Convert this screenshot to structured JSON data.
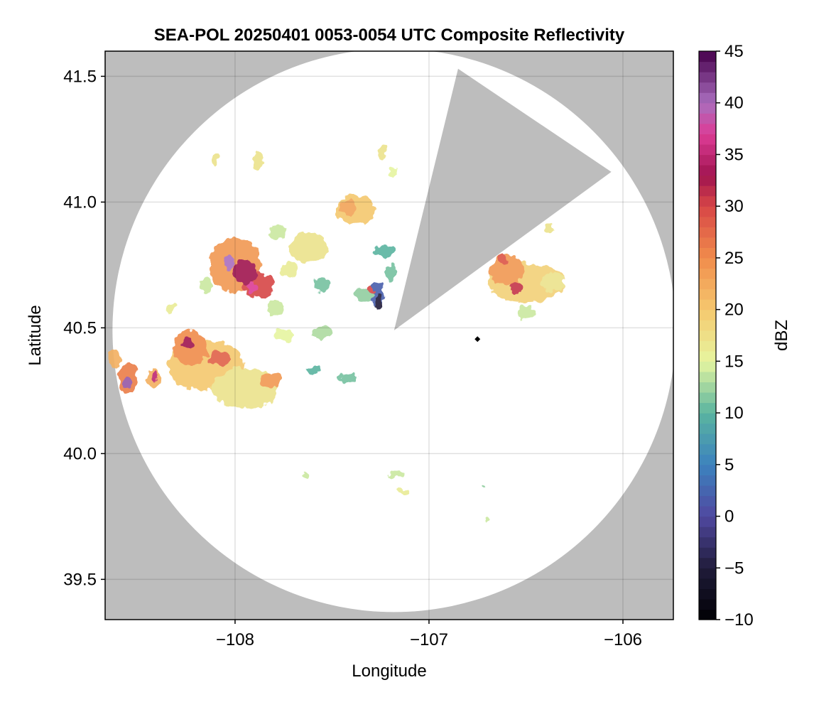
{
  "chart_data": {
    "type": "heatmap",
    "title": "SEA-POL 20250401 0053-0054 UTC Composite Reflectivity",
    "xlabel": "Longitude",
    "ylabel": "Latitude",
    "xlim": [
      -108.67,
      -105.74
    ],
    "ylim": [
      39.34,
      41.6
    ],
    "xticks": [
      -108,
      -107,
      -106
    ],
    "xtick_labels": [
      "−108",
      "−107",
      "−106"
    ],
    "yticks": [
      39.5,
      40.0,
      40.5,
      41.0,
      41.5
    ],
    "ytick_labels": [
      "39.5",
      "40.0",
      "40.5",
      "41.0",
      "41.5"
    ],
    "grid": true,
    "background_color": "#bdbdbd",
    "radar": {
      "center": [
        -107.18,
        40.49
      ],
      "range_radius_deg_lat": 1.12,
      "blocked_sector_vertices": [
        [
          -107.18,
          40.49
        ],
        [
          -106.85,
          41.53
        ],
        [
          -106.06,
          41.12
        ]
      ],
      "site_marker": [
        -106.75,
        40.455
      ]
    },
    "colorbar": {
      "label": "dBZ",
      "min": -10,
      "max": 45,
      "ticks": [
        -10,
        -5,
        0,
        5,
        10,
        15,
        20,
        25,
        30,
        35,
        40,
        45
      ],
      "tick_labels": [
        "−10",
        "−5",
        "0",
        "5",
        "10",
        "15",
        "20",
        "25",
        "30",
        "35",
        "40",
        "45"
      ],
      "step": 1
    },
    "echo_cells": [
      {
        "lon": -108.0,
        "lat": 40.75,
        "rx": 0.13,
        "ry": 0.11,
        "dbz": 24
      },
      {
        "lon": -107.88,
        "lat": 40.67,
        "rx": 0.08,
        "ry": 0.05,
        "dbz": 30
      },
      {
        "lon": -107.95,
        "lat": 40.72,
        "rx": 0.06,
        "ry": 0.05,
        "dbz": 33
      },
      {
        "lon": -108.03,
        "lat": 40.76,
        "rx": 0.03,
        "ry": 0.03,
        "dbz": 40
      },
      {
        "lon": -107.91,
        "lat": 40.66,
        "rx": 0.03,
        "ry": 0.02,
        "dbz": 37
      },
      {
        "lon": -107.62,
        "lat": 40.82,
        "rx": 0.1,
        "ry": 0.06,
        "dbz": 17
      },
      {
        "lon": -107.38,
        "lat": 40.97,
        "rx": 0.1,
        "ry": 0.06,
        "dbz": 20
      },
      {
        "lon": -107.42,
        "lat": 40.98,
        "rx": 0.04,
        "ry": 0.03,
        "dbz": 23
      },
      {
        "lon": -107.78,
        "lat": 40.88,
        "rx": 0.05,
        "ry": 0.03,
        "dbz": 14
      },
      {
        "lon": -107.72,
        "lat": 40.73,
        "rx": 0.04,
        "ry": 0.03,
        "dbz": 16
      },
      {
        "lon": -107.79,
        "lat": 40.58,
        "rx": 0.04,
        "ry": 0.03,
        "dbz": 14
      },
      {
        "lon": -107.55,
        "lat": 40.67,
        "rx": 0.04,
        "ry": 0.03,
        "dbz": 11
      },
      {
        "lon": -107.27,
        "lat": 40.63,
        "rx": 0.04,
        "ry": 0.05,
        "dbz": 2
      },
      {
        "lon": -107.34,
        "lat": 40.63,
        "rx": 0.05,
        "ry": 0.03,
        "dbz": 12
      },
      {
        "lon": -107.3,
        "lat": 40.65,
        "rx": 0.02,
        "ry": 0.015,
        "dbz": 30
      },
      {
        "lon": -107.26,
        "lat": 40.6,
        "rx": 0.02,
        "ry": 0.03,
        "dbz": -5
      },
      {
        "lon": -107.23,
        "lat": 40.8,
        "rx": 0.05,
        "ry": 0.03,
        "dbz": 10
      },
      {
        "lon": -107.2,
        "lat": 40.72,
        "rx": 0.03,
        "ry": 0.03,
        "dbz": 11
      },
      {
        "lon": -107.24,
        "lat": 41.2,
        "rx": 0.025,
        "ry": 0.03,
        "dbz": 17
      },
      {
        "lon": -107.18,
        "lat": 41.12,
        "rx": 0.025,
        "ry": 0.02,
        "dbz": 15
      },
      {
        "lon": -107.88,
        "lat": 41.17,
        "rx": 0.03,
        "ry": 0.03,
        "dbz": 17
      },
      {
        "lon": -108.1,
        "lat": 41.17,
        "rx": 0.02,
        "ry": 0.02,
        "dbz": 17
      },
      {
        "lon": -108.15,
        "lat": 40.67,
        "rx": 0.03,
        "ry": 0.03,
        "dbz": 14
      },
      {
        "lon": -108.33,
        "lat": 40.58,
        "rx": 0.02,
        "ry": 0.02,
        "dbz": 16
      },
      {
        "lon": -107.55,
        "lat": 40.48,
        "rx": 0.06,
        "ry": 0.025,
        "dbz": 13
      },
      {
        "lon": -107.75,
        "lat": 40.47,
        "rx": 0.05,
        "ry": 0.025,
        "dbz": 15
      },
      {
        "lon": -108.15,
        "lat": 40.35,
        "rx": 0.2,
        "ry": 0.1,
        "dbz": 20
      },
      {
        "lon": -107.95,
        "lat": 40.26,
        "rx": 0.17,
        "ry": 0.08,
        "dbz": 17
      },
      {
        "lon": -108.23,
        "lat": 40.42,
        "rx": 0.09,
        "ry": 0.07,
        "dbz": 25
      },
      {
        "lon": -108.08,
        "lat": 40.38,
        "rx": 0.06,
        "ry": 0.03,
        "dbz": 28
      },
      {
        "lon": -108.25,
        "lat": 40.44,
        "rx": 0.03,
        "ry": 0.025,
        "dbz": 33
      },
      {
        "lon": -107.82,
        "lat": 40.29,
        "rx": 0.05,
        "ry": 0.03,
        "dbz": 24
      },
      {
        "lon": -108.55,
        "lat": 40.3,
        "rx": 0.05,
        "ry": 0.06,
        "dbz": 26
      },
      {
        "lon": -108.56,
        "lat": 40.28,
        "rx": 0.02,
        "ry": 0.025,
        "dbz": 41
      },
      {
        "lon": -108.62,
        "lat": 40.38,
        "rx": 0.03,
        "ry": 0.04,
        "dbz": 22
      },
      {
        "lon": -108.42,
        "lat": 40.3,
        "rx": 0.04,
        "ry": 0.035,
        "dbz": 22
      },
      {
        "lon": -108.41,
        "lat": 40.31,
        "rx": 0.015,
        "ry": 0.015,
        "dbz": 35
      },
      {
        "lon": -107.42,
        "lat": 40.3,
        "rx": 0.05,
        "ry": 0.02,
        "dbz": 11
      },
      {
        "lon": -107.6,
        "lat": 40.33,
        "rx": 0.03,
        "ry": 0.015,
        "dbz": 10
      },
      {
        "lon": -106.5,
        "lat": 40.68,
        "rx": 0.2,
        "ry": 0.08,
        "dbz": 19
      },
      {
        "lon": -106.6,
        "lat": 40.73,
        "rx": 0.09,
        "ry": 0.06,
        "dbz": 24
      },
      {
        "lon": -106.55,
        "lat": 40.66,
        "rx": 0.03,
        "ry": 0.025,
        "dbz": 31
      },
      {
        "lon": -106.62,
        "lat": 40.77,
        "rx": 0.02,
        "ry": 0.02,
        "dbz": 29
      },
      {
        "lon": -106.36,
        "lat": 40.68,
        "rx": 0.06,
        "ry": 0.04,
        "dbz": 17
      },
      {
        "lon": -106.5,
        "lat": 40.56,
        "rx": 0.05,
        "ry": 0.03,
        "dbz": 14
      },
      {
        "lon": -106.38,
        "lat": 40.9,
        "rx": 0.02,
        "ry": 0.015,
        "dbz": 17
      },
      {
        "lon": -107.17,
        "lat": 39.92,
        "rx": 0.04,
        "ry": 0.015,
        "dbz": 14
      },
      {
        "lon": -107.13,
        "lat": 39.85,
        "rx": 0.03,
        "ry": 0.01,
        "dbz": 16
      },
      {
        "lon": -107.63,
        "lat": 39.91,
        "rx": 0.015,
        "ry": 0.012,
        "dbz": 14
      },
      {
        "lon": -106.7,
        "lat": 39.74,
        "rx": 0.01,
        "ry": 0.015,
        "dbz": 14
      },
      {
        "lon": -106.72,
        "lat": 39.87,
        "rx": 0.006,
        "ry": 0.006,
        "dbz": 12
      }
    ]
  }
}
